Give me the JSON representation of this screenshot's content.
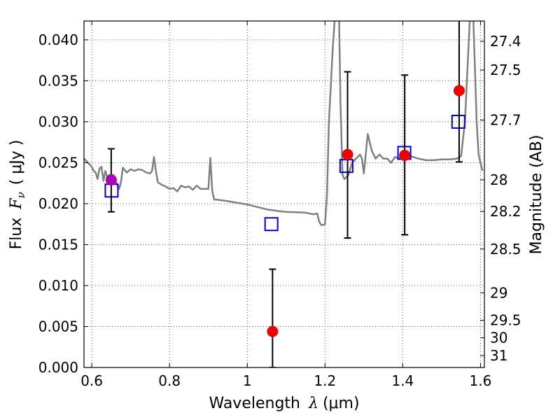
{
  "chart_data": {
    "type": "scatter",
    "title": "",
    "xlabel": {
      "prefix": "Wavelength",
      "symbol": "λ",
      "units": "(μm)"
    },
    "ylabel": {
      "prefix": "Flux",
      "symbol": "F",
      "subscript": "ν",
      "units": "( μJy )"
    },
    "y2label": "Magnitude (AB)",
    "xlim": [
      0.58,
      1.61
    ],
    "ylim": [
      0.0,
      0.0423
    ],
    "grid": true,
    "x_ticks": [
      {
        "value": 0.6,
        "label": "0.6"
      },
      {
        "value": 0.8,
        "label": "0.8"
      },
      {
        "value": 1.0,
        "label": "1"
      },
      {
        "value": 1.2,
        "label": "1.2"
      },
      {
        "value": 1.4,
        "label": "1.4"
      },
      {
        "value": 1.6,
        "label": "1.6"
      }
    ],
    "y_ticks": [
      {
        "value": 0.0,
        "label": "0.000"
      },
      {
        "value": 0.005,
        "label": "0.005"
      },
      {
        "value": 0.01,
        "label": "0.010"
      },
      {
        "value": 0.015,
        "label": "0.015"
      },
      {
        "value": 0.02,
        "label": "0.020"
      },
      {
        "value": 0.025,
        "label": "0.025"
      },
      {
        "value": 0.03,
        "label": "0.030"
      },
      {
        "value": 0.035,
        "label": "0.035"
      },
      {
        "value": 0.04,
        "label": "0.040"
      }
    ],
    "magnitude_ticks": [
      {
        "value": 27.4,
        "label": "27.4"
      },
      {
        "value": 27.5,
        "label": "27.5"
      },
      {
        "value": 27.7,
        "label": "27.7"
      },
      {
        "value": 28.0,
        "label": "28"
      },
      {
        "value": 28.2,
        "label": "28.2"
      },
      {
        "value": 28.5,
        "label": "28.5"
      },
      {
        "value": 29.0,
        "label": "29"
      },
      {
        "value": 29.5,
        "label": "29.5"
      },
      {
        "value": 30.0,
        "label": "30"
      },
      {
        "value": 31.0,
        "label": "31"
      }
    ],
    "series": [
      {
        "name": "model-spectrum",
        "kind": "line",
        "color": "#808080",
        "x": [
          0.58,
          0.59,
          0.6,
          0.605,
          0.61,
          0.615,
          0.62,
          0.625,
          0.63,
          0.635,
          0.64,
          0.645,
          0.65,
          0.655,
          0.66,
          0.665,
          0.67,
          0.675,
          0.68,
          0.69,
          0.7,
          0.71,
          0.72,
          0.73,
          0.74,
          0.75,
          0.755,
          0.76,
          0.765,
          0.77,
          0.78,
          0.79,
          0.8,
          0.81,
          0.82,
          0.83,
          0.84,
          0.85,
          0.86,
          0.87,
          0.88,
          0.89,
          0.9,
          0.905,
          0.91,
          0.915,
          0.92,
          0.95,
          1.0,
          1.05,
          1.08,
          1.1,
          1.15,
          1.17,
          1.18,
          1.185,
          1.19,
          1.195,
          1.2,
          1.205,
          1.21,
          1.22,
          1.23,
          1.235,
          1.24,
          1.245,
          1.25,
          1.26,
          1.27,
          1.28,
          1.29,
          1.295,
          1.3,
          1.31,
          1.32,
          1.33,
          1.34,
          1.35,
          1.36,
          1.37,
          1.38,
          1.39,
          1.4,
          1.41,
          1.42,
          1.44,
          1.46,
          1.48,
          1.5,
          1.52,
          1.54,
          1.55,
          1.56,
          1.57,
          1.575,
          1.58,
          1.59,
          1.595,
          1.6,
          1.605
        ],
        "y": [
          0.0255,
          0.025,
          0.0245,
          0.024,
          0.0238,
          0.023,
          0.0243,
          0.0245,
          0.0228,
          0.024,
          0.0232,
          0.0235,
          0.0225,
          0.0235,
          0.0228,
          0.0224,
          0.0218,
          0.0226,
          0.0244,
          0.0238,
          0.0242,
          0.024,
          0.0242,
          0.0241,
          0.0238,
          0.0237,
          0.024,
          0.0257,
          0.024,
          0.0226,
          0.0223,
          0.0221,
          0.0218,
          0.0219,
          0.0215,
          0.0222,
          0.022,
          0.0221,
          0.0217,
          0.0222,
          0.0218,
          0.0218,
          0.0218,
          0.0256,
          0.0215,
          0.0205,
          0.0205,
          0.0203,
          0.0199,
          0.0193,
          0.0191,
          0.019,
          0.0189,
          0.0187,
          0.0188,
          0.0178,
          0.0174,
          0.0174,
          0.0175,
          0.021,
          0.03,
          0.039,
          0.046,
          0.046,
          0.032,
          0.0235,
          0.023,
          0.0235,
          0.025,
          0.0255,
          0.026,
          0.0255,
          0.0237,
          0.0285,
          0.0265,
          0.0255,
          0.026,
          0.0255,
          0.0255,
          0.025,
          0.0257,
          0.0255,
          0.0258,
          0.0263,
          0.0258,
          0.0255,
          0.0253,
          0.0253,
          0.0254,
          0.0254,
          0.0255,
          0.0258,
          0.03,
          0.04,
          0.045,
          0.045,
          0.03,
          0.026,
          0.025,
          0.024
        ]
      },
      {
        "name": "model-photometry",
        "kind": "open-square",
        "color": "#0000cc",
        "x": [
          0.651,
          1.062,
          1.255,
          1.404,
          1.543
        ],
        "y": [
          0.0216,
          0.0175,
          0.0246,
          0.0262,
          0.03
        ]
      },
      {
        "name": "observed-photometry",
        "kind": "filled-circle",
        "color": "#ee0000",
        "x": [
          1.065,
          1.258,
          1.405,
          1.545
        ],
        "y": [
          0.0044,
          0.026,
          0.0259,
          0.0338
        ],
        "yerr_low": [
          0.0044,
          0.0102,
          0.0097,
          0.0087
        ],
        "yerr_high": [
          0.0076,
          0.0101,
          0.0098,
          0.016
        ]
      },
      {
        "name": "observed-optical-point",
        "kind": "filled-circle",
        "color": "#aa00bb",
        "x": [
          0.65
        ],
        "y": [
          0.0229
        ],
        "yerr_low": [
          0.0039
        ],
        "yerr_high": [
          0.0038
        ]
      }
    ]
  }
}
